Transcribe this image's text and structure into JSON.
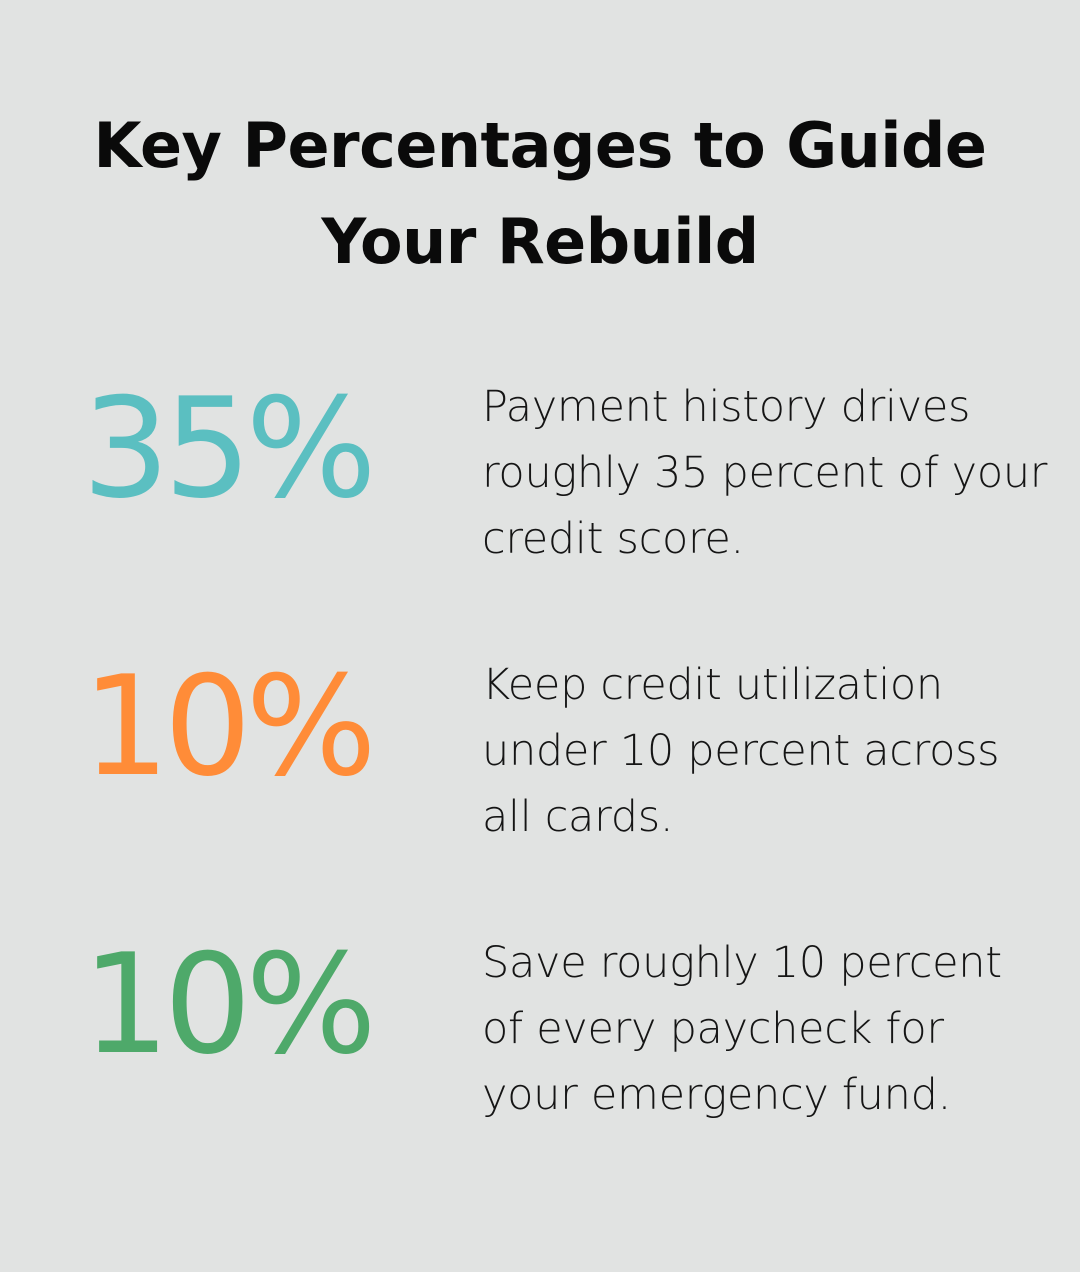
{
  "title": "Key Percentages to Guide Your Rebuild",
  "colors": {
    "background": "#e1e3e2",
    "teal": "#5bbfc1",
    "orange": "#ff8c38",
    "green": "#4ea96a"
  },
  "stats": [
    {
      "value": "35%",
      "color": "#5bbfc1",
      "text": "Payment history drives roughly 35 percent of your credit score."
    },
    {
      "value": "10%",
      "color": "#ff8c38",
      "text": "Keep credit utilization under 10 percent across all cards."
    },
    {
      "value": "10%",
      "color": "#4ea96a",
      "text": "Save roughly 10 percent of every paycheck for your emergency fund."
    }
  ]
}
